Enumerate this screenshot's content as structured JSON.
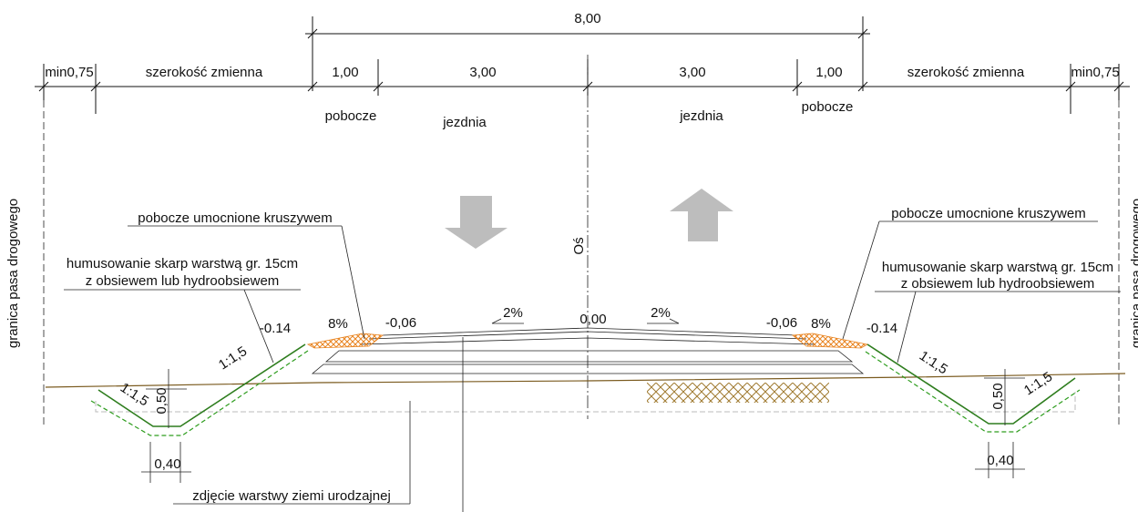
{
  "dimensions": {
    "total": "8,00",
    "segments": [
      "min0,75",
      "szerokość zmienna",
      "1,00",
      "3,00",
      "3,00",
      "1,00",
      "szerokość zmienna",
      "min0,75"
    ]
  },
  "lane_labels": [
    "pobocze",
    "jezdnia",
    "jezdnia",
    "pobocze"
  ],
  "boundary_labels": [
    "granica pasa drogowego",
    "granica pasa drogowego"
  ],
  "axis_label": "Oś",
  "left_callouts": {
    "shoulder": "pobocze umocnione kruszywem",
    "topsoil_line1": "humusowanie skarp warstwą gr. 15cm",
    "topsoil_line2": "z obsiewem lub hydroobsiewem"
  },
  "right_callouts": {
    "shoulder": "pobocze umocnione kruszywem",
    "topsoil_line1": "humusowanie skarp warstwą gr. 15cm",
    "topsoil_line2": "z obsiewem lub hydroobsiewem"
  },
  "levels": [
    "-0.14",
    "8%",
    "-0,06",
    "2%",
    "0,00",
    "2%",
    "-0,06",
    "8%",
    "-0.14"
  ],
  "slopes": [
    "1:1,5",
    "1:1,5",
    "1:1,5",
    "1:1,5"
  ],
  "ditch_depths": [
    "0,50",
    "0,50"
  ],
  "ditch_widths": [
    "0,40",
    "0,40"
  ],
  "stripping_label": "zdjęcie warstwy ziemi urodzajnej"
}
